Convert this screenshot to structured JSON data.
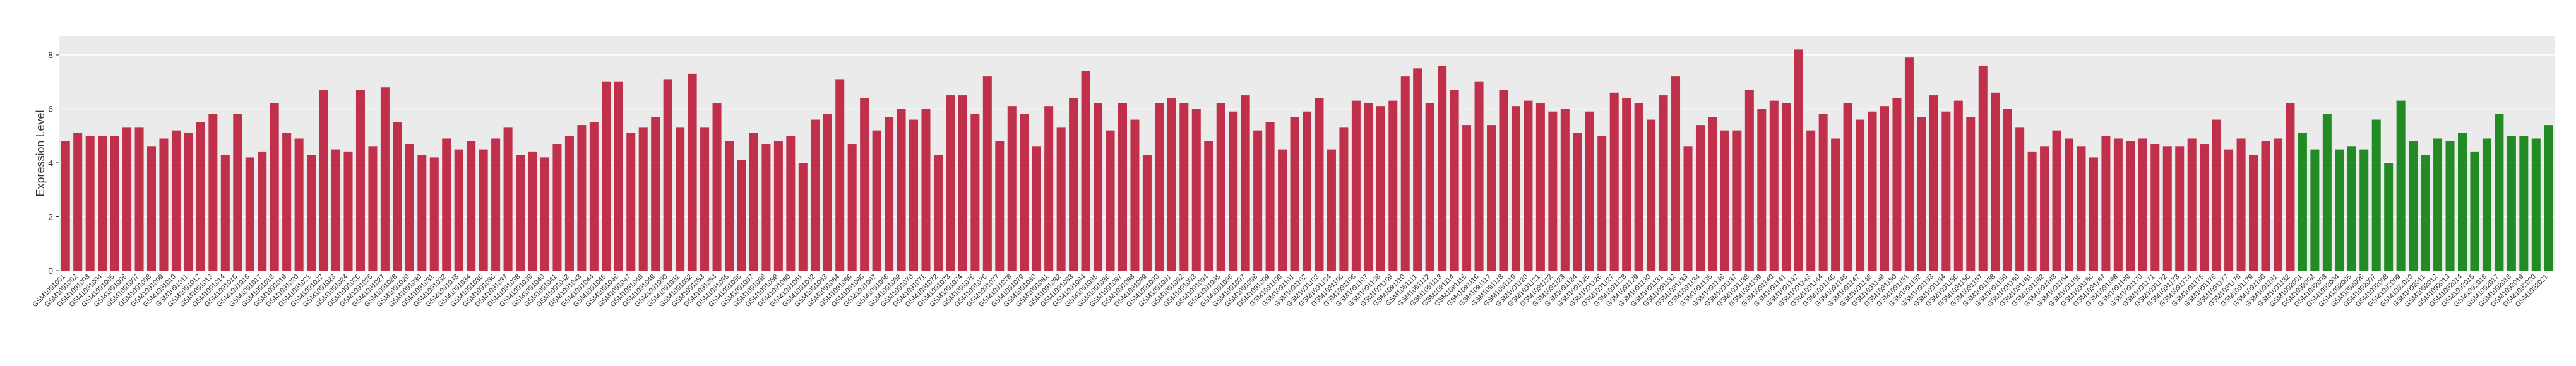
{
  "chart_data": {
    "type": "bar",
    "ylabel": "Expression Level",
    "ylim": [
      0,
      8.7
    ],
    "yticks": [
      0,
      2,
      4,
      6,
      8
    ],
    "grid": true,
    "series": [
      {
        "color": "#c0304a",
        "categories": [
          "GSM1091001",
          "GSM1091002",
          "GSM1091003",
          "GSM1091004",
          "GSM1091005",
          "GSM1091006",
          "GSM1091007",
          "GSM1091008",
          "GSM1091009",
          "GSM1091010",
          "GSM1091011",
          "GSM1091012",
          "GSM1091013",
          "GSM1091014",
          "GSM1091015",
          "GSM1091016",
          "GSM1091017",
          "GSM1091018",
          "GSM1091019",
          "GSM1091020",
          "GSM1091021",
          "GSM1091022",
          "GSM1091023",
          "GSM1091024",
          "GSM1091025",
          "GSM1091026",
          "GSM1091027",
          "GSM1091028",
          "GSM1091029",
          "GSM1091030",
          "GSM1091031",
          "GSM1091032",
          "GSM1091033",
          "GSM1091034",
          "GSM1091035",
          "GSM1091036",
          "GSM1091037",
          "GSM1091038",
          "GSM1091039",
          "GSM1091040",
          "GSM1091041",
          "GSM1091042",
          "GSM1091043",
          "GSM1091044",
          "GSM1091045",
          "GSM1091046",
          "GSM1091047",
          "GSM1091048",
          "GSM1091049",
          "GSM1091050",
          "GSM1091051",
          "GSM1091052",
          "GSM1091053",
          "GSM1091054",
          "GSM1091055",
          "GSM1091056",
          "GSM1091057",
          "GSM1091058",
          "GSM1091059",
          "GSM1091060",
          "GSM1091061",
          "GSM1091062",
          "GSM1091063",
          "GSM1091064",
          "GSM1091065",
          "GSM1091066",
          "GSM1091067",
          "GSM1091068",
          "GSM1091069",
          "GSM1091070",
          "GSM1091071",
          "GSM1091072",
          "GSM1091073",
          "GSM1091074",
          "GSM1091075",
          "GSM1091076",
          "GSM1091077",
          "GSM1091078",
          "GSM1091079",
          "GSM1091080",
          "GSM1091081",
          "GSM1091082",
          "GSM1091083",
          "GSM1091084",
          "GSM1091085",
          "GSM1091086",
          "GSM1091087",
          "GSM1091088",
          "GSM1091089",
          "GSM1091090",
          "GSM1091091",
          "GSM1091092",
          "GSM1091093",
          "GSM1091094",
          "GSM1091095",
          "GSM1091096",
          "GSM1091097",
          "GSM1091098",
          "GSM1091099",
          "GSM1091100",
          "GSM1091101",
          "GSM1091102",
          "GSM1091103",
          "GSM1091104",
          "GSM1091105",
          "GSM1091106",
          "GSM1091107",
          "GSM1091108",
          "GSM1091109",
          "GSM1091110",
          "GSM1091111",
          "GSM1091112",
          "GSM1091113",
          "GSM1091114",
          "GSM1091115",
          "GSM1091116",
          "GSM1091117",
          "GSM1091118",
          "GSM1091119",
          "GSM1091120",
          "GSM1091121",
          "GSM1091122",
          "GSM1091123",
          "GSM1091124",
          "GSM1091125",
          "GSM1091126",
          "GSM1091127",
          "GSM1091128",
          "GSM1091129",
          "GSM1091130",
          "GSM1091131",
          "GSM1091132",
          "GSM1091133",
          "GSM1091134",
          "GSM1091135",
          "GSM1091136",
          "GSM1091137",
          "GSM1091138",
          "GSM1091139",
          "GSM1091140",
          "GSM1091141",
          "GSM1091142",
          "GSM1091143",
          "GSM1091144",
          "GSM1091145",
          "GSM1091146",
          "GSM1091147",
          "GSM1091148",
          "GSM1091149",
          "GSM1091150",
          "GSM1091151",
          "GSM1091152",
          "GSM1091153",
          "GSM1091154",
          "GSM1091155",
          "GSM1091156",
          "GSM1091157",
          "GSM1091158",
          "GSM1091159",
          "GSM1091160",
          "GSM1091161",
          "GSM1091162",
          "GSM1091163",
          "GSM1091164",
          "GSM1091165",
          "GSM1091166",
          "GSM1091167",
          "GSM1091168",
          "GSM1091169",
          "GSM1091170",
          "GSM1091171",
          "GSM1091172",
          "GSM1091173",
          "GSM1091174",
          "GSM1091175",
          "GSM1091176",
          "GSM1091177",
          "GSM1091178",
          "GSM1091179",
          "GSM1091180",
          "GSM1091181",
          "GSM1091182"
        ],
        "values": [
          4.8,
          5.1,
          5.0,
          5.0,
          5.0,
          5.3,
          5.3,
          4.6,
          4.9,
          5.2,
          5.1,
          5.5,
          5.8,
          4.3,
          5.8,
          4.2,
          4.4,
          6.2,
          5.1,
          4.9,
          4.3,
          6.7,
          4.5,
          4.4,
          6.7,
          4.6,
          6.8,
          5.5,
          4.7,
          4.3,
          4.2,
          4.9,
          4.5,
          4.8,
          4.5,
          4.9,
          5.3,
          4.3,
          4.4,
          4.2,
          4.7,
          5.0,
          5.4,
          5.5,
          7.0,
          7.0,
          5.1,
          5.3,
          5.7,
          7.1,
          5.3,
          7.3,
          5.3,
          6.2,
          4.8,
          4.1,
          5.1,
          4.7,
          4.8,
          5.0,
          4.0,
          5.6,
          5.8,
          7.1,
          4.7,
          6.4,
          5.2,
          5.7,
          6.0,
          5.6,
          6.0,
          4.3,
          6.5,
          6.5,
          5.8,
          7.2,
          4.8,
          6.1,
          5.8,
          4.6,
          6.1,
          5.3,
          6.4,
          7.4,
          6.2,
          5.2,
          6.2,
          5.6,
          4.3,
          6.2,
          6.4,
          6.2,
          6.0,
          4.8,
          6.2,
          5.9,
          6.5,
          5.2,
          5.5,
          4.5,
          5.7,
          5.9,
          6.4,
          4.5,
          5.3,
          6.3,
          6.2,
          6.1,
          6.3,
          7.2,
          7.5,
          6.2,
          7.6,
          6.7,
          5.4,
          7.0,
          5.4,
          6.7,
          6.1,
          6.3,
          6.2,
          5.9,
          6.0,
          5.1,
          5.9,
          5.0,
          6.6,
          6.4,
          6.2,
          5.6,
          6.5,
          7.2,
          4.6,
          5.4,
          5.7,
          5.2,
          5.2,
          6.7,
          6.0,
          6.3,
          6.2,
          8.2,
          5.2,
          5.8,
          4.9,
          6.2,
          5.6,
          5.9,
          6.1,
          6.4,
          7.9,
          5.7,
          6.5,
          5.9,
          6.3,
          5.7,
          7.6,
          6.6,
          6.0,
          5.3,
          4.4,
          4.6,
          5.2,
          4.9,
          4.6,
          4.2,
          5.0,
          4.9,
          4.8,
          4.9,
          4.7,
          4.6,
          4.6,
          4.9,
          4.7,
          5.6,
          4.5,
          4.9,
          4.3,
          4.8,
          4.9,
          6.2
        ]
      },
      {
        "color": "#238b23",
        "categories": [
          "GSM1092001",
          "GSM1092002",
          "GSM1092003",
          "GSM1092004",
          "GSM1092005",
          "GSM1092006",
          "GSM1092007",
          "GSM1092008",
          "GSM1092009",
          "GSM1092010",
          "GSM1092011",
          "GSM1092012",
          "GSM1092013",
          "GSM1092014",
          "GSM1092015",
          "GSM1092016",
          "GSM1092017",
          "GSM1092018",
          "GSM1092019",
          "GSM1092020",
          "GSM1092021"
        ],
        "values": [
          5.1,
          4.5,
          5.8,
          4.5,
          4.6,
          4.5,
          5.6,
          4.0,
          6.3,
          4.8,
          4.3,
          4.9,
          4.8,
          5.1,
          4.4,
          4.9,
          5.8,
          5.0,
          5.0,
          4.9,
          5.4
        ]
      }
    ]
  }
}
